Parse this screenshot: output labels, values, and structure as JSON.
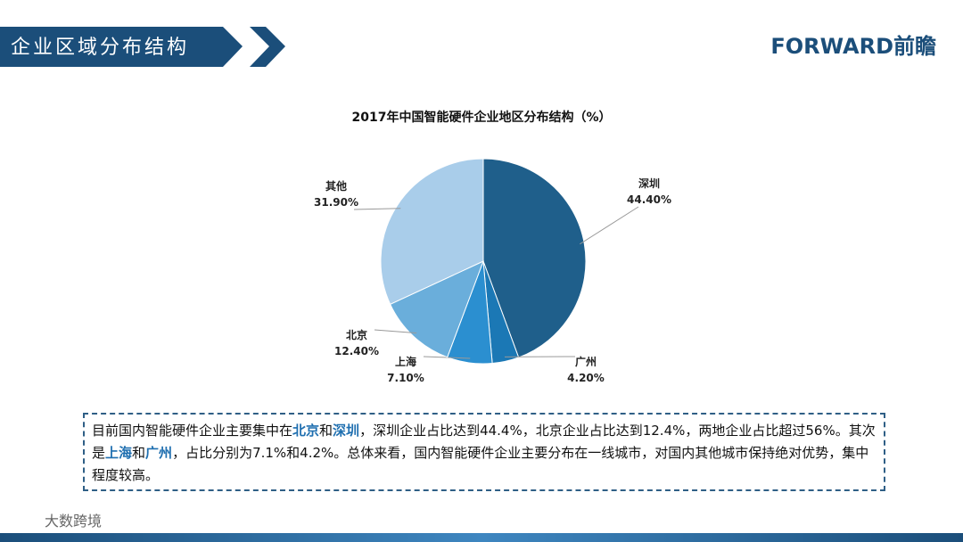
{
  "header": {
    "title": "企业区域分布结构",
    "logo": "FORWARD前瞻"
  },
  "chart_data": {
    "type": "pie",
    "title": "2017年中国智能硬件企业地区分布结构（%）",
    "categories": [
      "深圳",
      "广州",
      "上海",
      "北京",
      "其他"
    ],
    "values": [
      44.4,
      4.2,
      7.1,
      12.4,
      31.9
    ],
    "value_labels": [
      "44.40%",
      "4.20%",
      "7.10%",
      "12.40%",
      "31.90%"
    ],
    "colors": [
      "#1f5f8b",
      "#1b78b5",
      "#2b8fd0",
      "#6aaedb",
      "#a9cdea"
    ]
  },
  "description": [
    "目前国内智能硬件企业主要集中在",
    "北京",
    "和",
    "深圳",
    "，深圳企业占比达到44.4%，北京企业占比达到12.4%，两地企业占比超过56%。其次是",
    "上海",
    "和",
    "广州",
    "，占比分别为7.1%和4.2%。总体来看，国内智能硬件企业主要分布在一线城市，对国内其他城市保持绝对优势，集中程度较高。"
  ],
  "footer": "大数跨境"
}
